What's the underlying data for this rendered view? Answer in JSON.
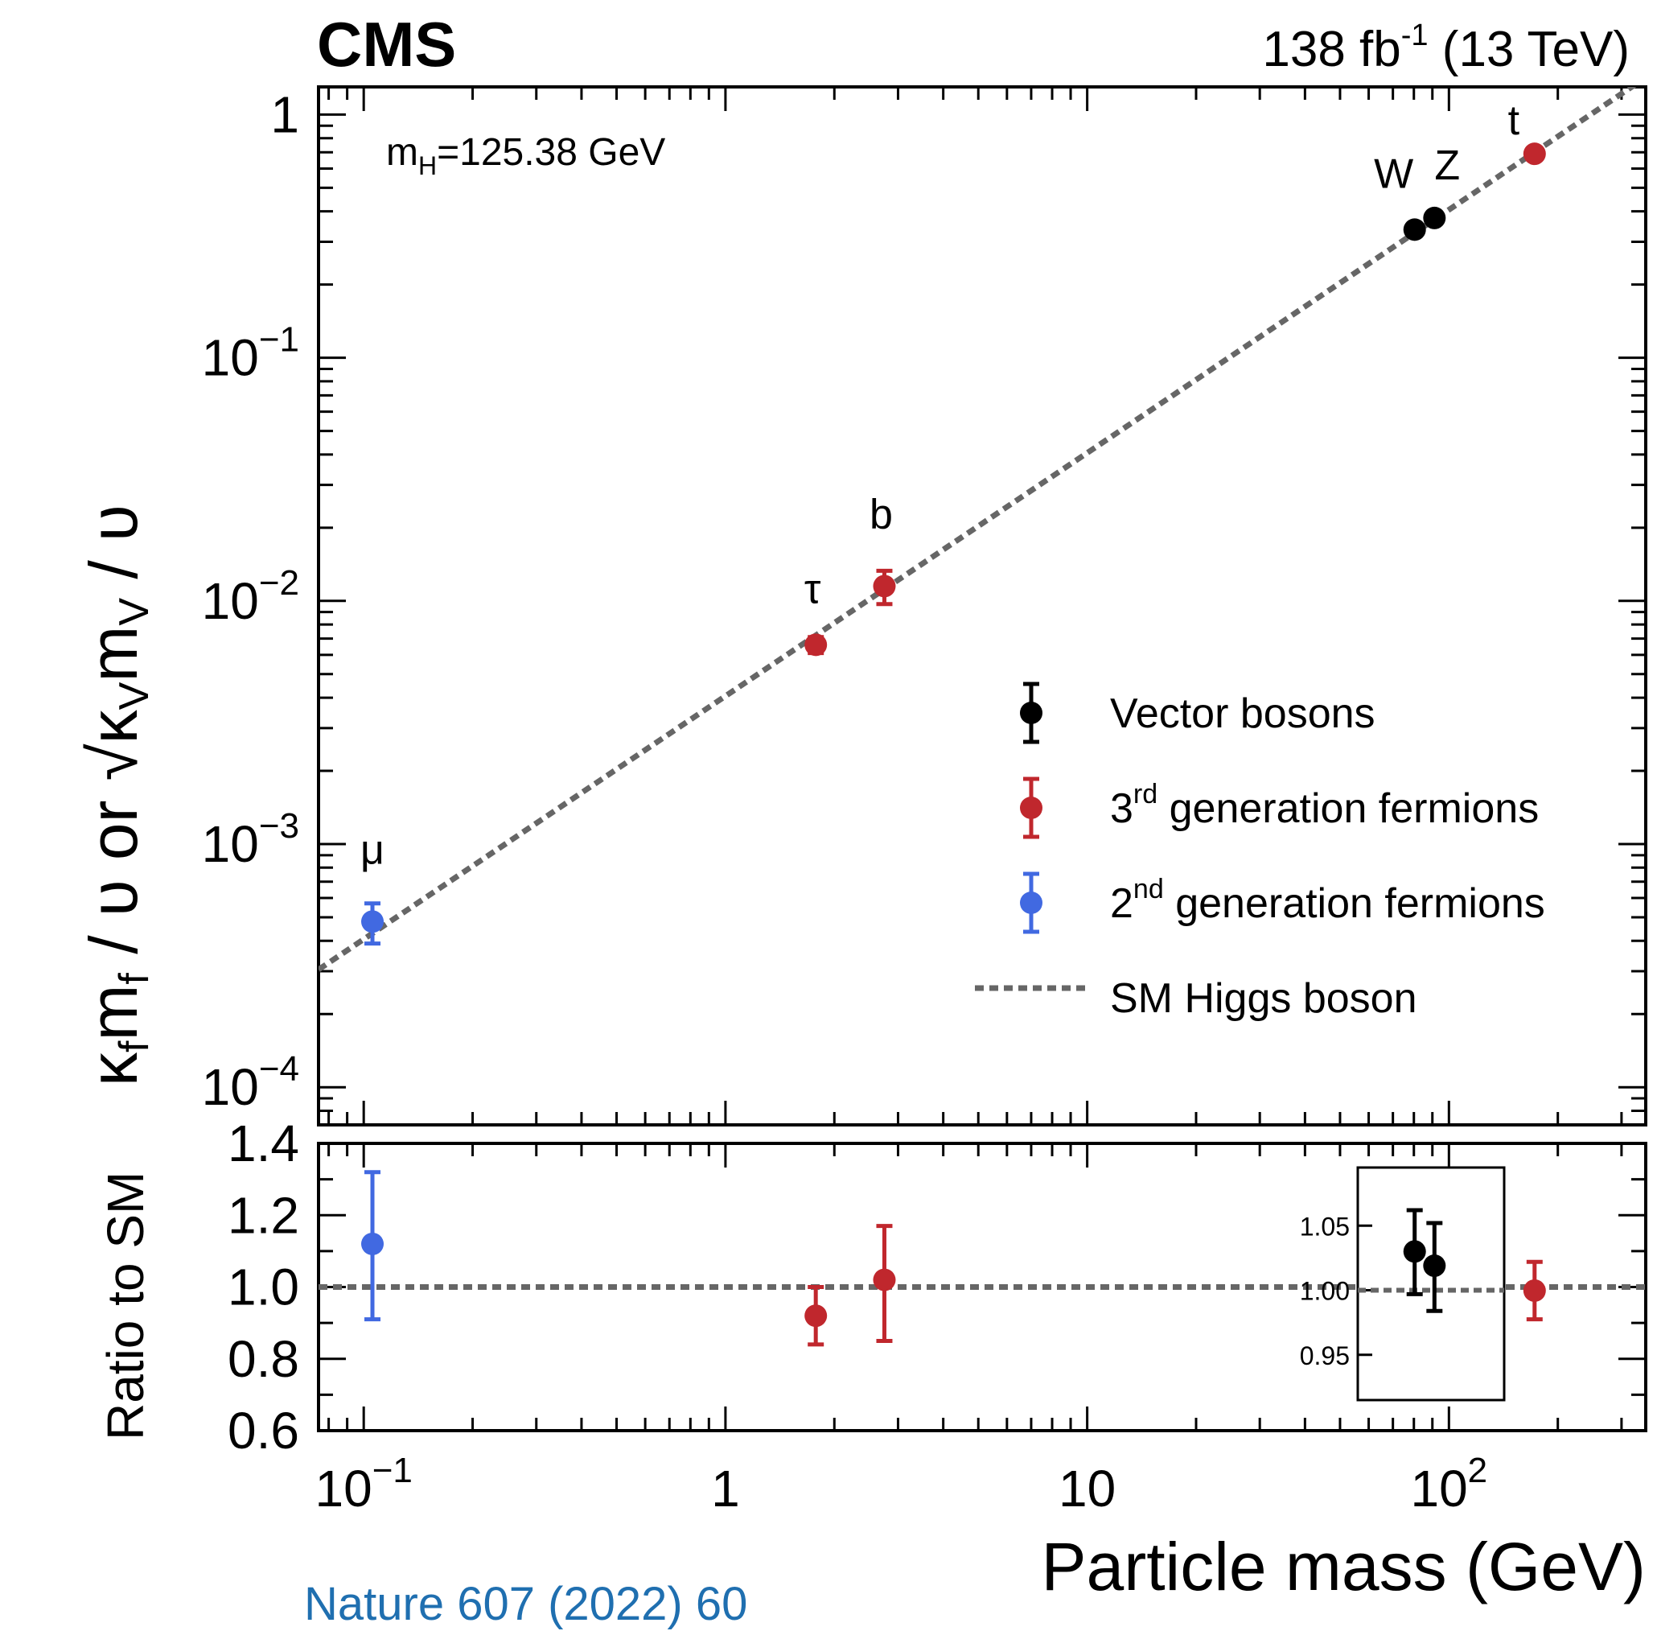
{
  "header": {
    "experiment": "CMS",
    "luminosity": "138 fb",
    "luminosity_sup": "-1",
    "energy": "(13 TeV)"
  },
  "annotation": {
    "mass_label_main": "m",
    "mass_label_sub": "H",
    "mass_label_value": "=125.38 GeV"
  },
  "footer": {
    "reference": "Nature 607 (2022) 60"
  },
  "chart_data": [
    {
      "type": "scatter",
      "panel": "main",
      "xlabel": "Particle mass (GeV)",
      "ylabel_parts": {
        "kf": "κ",
        "kf_sub": "f",
        "mf": "m",
        "mf_sub": "f",
        "denominator": "υ",
        "or": "or",
        "kv": "κ",
        "kv_sub": "V",
        "mv": "m",
        "mv_sub": "V"
      },
      "xscale": "log",
      "yscale": "log",
      "xlim": [
        0.075,
        350
      ],
      "ylim": [
        7e-05,
        1.3
      ],
      "x_ticks": [
        {
          "value": 0.1,
          "base": "10",
          "exp": "−1"
        },
        {
          "value": 1,
          "label": "1"
        },
        {
          "value": 10,
          "label": "10"
        },
        {
          "value": 100,
          "base": "10",
          "exp": "2"
        }
      ],
      "y_ticks": [
        {
          "value": 1,
          "label": "1"
        },
        {
          "value": 0.1,
          "base": "10",
          "exp": "−1"
        },
        {
          "value": 0.01,
          "base": "10",
          "exp": "−2"
        },
        {
          "value": 0.001,
          "base": "10",
          "exp": "−3"
        },
        {
          "value": 0.0001,
          "base": "10",
          "exp": "−4"
        }
      ],
      "reference_line": {
        "name": "SM Higgs boson",
        "color": "#666666",
        "style": "dashed",
        "vev_gev": 246.22
      },
      "series": [
        {
          "name": "Vector bosons",
          "color": "#000000",
          "points": [
            {
              "label": "W",
              "x": 80.4,
              "y": 0.3365,
              "err_low": 0.006,
              "err_high": 0.006
            },
            {
              "label": "Z",
              "x": 91.19,
              "y": 0.3757,
              "err_low": 0.006,
              "err_high": 0.006
            }
          ]
        },
        {
          "name": "3rd generation fermions",
          "name_prefix": "3",
          "name_sup": "rd",
          "name_suffix": " generation fermions",
          "color": "#c0272d",
          "points": [
            {
              "label": "τ",
              "x": 1.777,
              "y": 0.0066,
              "err_low": 0.0005,
              "err_high": 0.0005
            },
            {
              "label": "b",
              "x": 2.75,
              "y": 0.0115,
              "err_low": 0.0018,
              "err_high": 0.0018
            },
            {
              "label": "t",
              "x": 172.5,
              "y": 0.69,
              "err_low": 0.02,
              "err_high": 0.02
            }
          ]
        },
        {
          "name": "2nd generation fermions",
          "name_prefix": "2",
          "name_sup": "nd",
          "name_suffix": " generation fermions",
          "color": "#4169e1",
          "points": [
            {
              "label": "μ",
              "x": 0.1057,
              "y": 0.00048,
              "err_low": 9e-05,
              "err_high": 9e-05
            }
          ]
        }
      ],
      "legend": {
        "position": "lower-right",
        "entries": [
          {
            "text": "Vector bosons"
          },
          {
            "prefix": "3",
            "sup": "rd",
            "suffix": " generation fermions"
          },
          {
            "prefix": "2",
            "sup": "nd",
            "suffix": " generation fermions"
          },
          {
            "text": "SM Higgs boson"
          }
        ]
      }
    },
    {
      "type": "scatter",
      "panel": "ratio",
      "ylabel": "Ratio to SM",
      "xscale": "log",
      "xlim": [
        0.075,
        350
      ],
      "ylim": [
        0.6,
        1.4
      ],
      "y_ticks": [
        "1.4",
        "1.2",
        "1.0",
        "0.8",
        "0.6"
      ],
      "reference_value": 1.0,
      "points": [
        {
          "label": "μ",
          "x": 0.1057,
          "y": 1.12,
          "err_low": 0.21,
          "err_high": 0.2,
          "color": "#4169e1"
        },
        {
          "label": "τ",
          "x": 1.777,
          "y": 0.92,
          "err_low": 0.08,
          "err_high": 0.08,
          "color": "#c0272d"
        },
        {
          "label": "b",
          "x": 2.75,
          "y": 1.02,
          "err_low": 0.17,
          "err_high": 0.15,
          "color": "#c0272d"
        },
        {
          "label": "t",
          "x": 172.5,
          "y": 0.99,
          "err_low": 0.08,
          "err_high": 0.08,
          "color": "#c0272d"
        }
      ],
      "inset": {
        "ylim": [
          0.915,
          1.095
        ],
        "y_ticks": [
          "1.05",
          "1.00",
          "0.95"
        ],
        "points": [
          {
            "label": "W",
            "y": 1.03,
            "err_low": 0.033,
            "err_high": 0.032,
            "color": "#000000"
          },
          {
            "label": "Z",
            "y": 1.019,
            "err_low": 0.035,
            "err_high": 0.033,
            "color": "#000000"
          }
        ]
      }
    }
  ]
}
